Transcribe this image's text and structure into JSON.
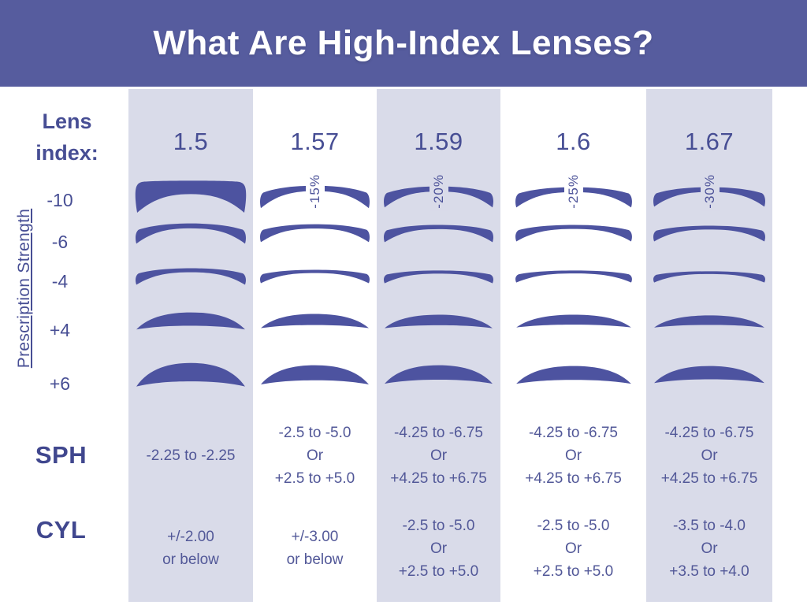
{
  "title": "What Are High-Index Lenses?",
  "colors": {
    "header_bg": "#565c9e",
    "column_stripe": "#d9dbe9",
    "lens_fill": "#4d53a0",
    "heading_text": "#474e94",
    "value_text": "#525898",
    "title_text": "#ffffff"
  },
  "left_panel": {
    "lens_index_line1": "Lens",
    "lens_index_line2": "index:",
    "axis_label": "Prescription Strength",
    "strengths": [
      "-10",
      "-6",
      "-4",
      "+4",
      "+6"
    ],
    "sph_label": "SPH",
    "cyl_label": "CYL"
  },
  "columns": [
    {
      "index": "1.5",
      "thickness_reduction": "",
      "sph": {
        "lines": [
          "-2.25 to -2.25"
        ]
      },
      "cyl": {
        "lines": [
          "+/-2.00",
          "or below"
        ]
      }
    },
    {
      "index": "1.57",
      "thickness_reduction": "-15%",
      "sph": {
        "lines": [
          "-2.5 to -5.0",
          "Or",
          "+2.5 to +5.0"
        ]
      },
      "cyl": {
        "lines": [
          "+/-3.00",
          "or below"
        ]
      }
    },
    {
      "index": "1.59",
      "thickness_reduction": "-20%",
      "sph": {
        "lines": [
          "-4.25 to -6.75",
          "Or",
          "+4.25 to +6.75"
        ]
      },
      "cyl": {
        "lines": [
          "-2.5 to -5.0",
          "Or",
          "+2.5 to +5.0"
        ]
      }
    },
    {
      "index": "1.6",
      "thickness_reduction": "-25%",
      "sph": {
        "lines": [
          "-4.25 to -6.75",
          "Or",
          "+4.25 to +6.75"
        ]
      },
      "cyl": {
        "lines": [
          "-2.5 to -5.0",
          "Or",
          "+2.5 to +5.0"
        ]
      }
    },
    {
      "index": "1.67",
      "thickness_reduction": "-30%",
      "sph": {
        "lines": [
          "-4.25 to -6.75",
          "Or",
          "+4.25 to +6.75"
        ]
      },
      "cyl": {
        "lines": [
          "-3.5 to -4.0",
          "Or",
          "+3.5 to +4.0"
        ]
      }
    }
  ]
}
